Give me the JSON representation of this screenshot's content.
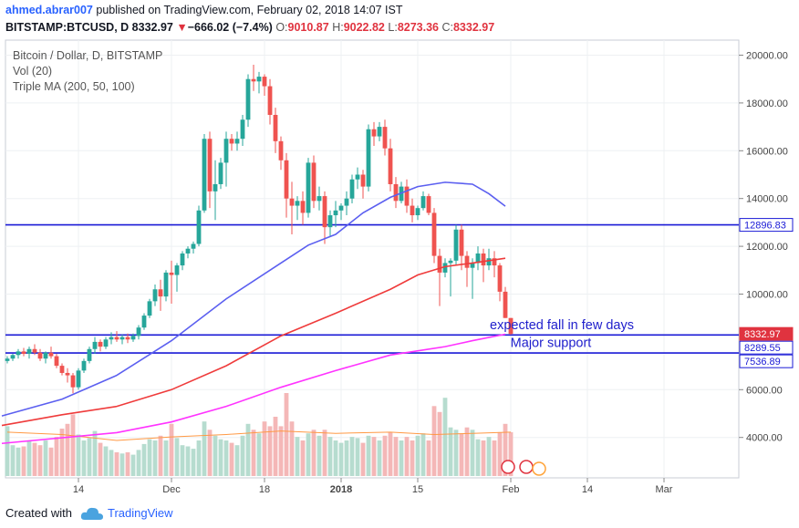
{
  "header": {
    "user": "ahmed.abrar007",
    "published": " published on TradingView.com, February 02, 2018 14:07 IST",
    "symbol": "BITSTAMP:BTCUSD, D",
    "last": "8332.97",
    "change_arrow": "▼",
    "change": "−666.02 (−7.4%)",
    "o_label": "O:",
    "o_value": "9010.87",
    "h_label": "H:",
    "h_value": "9022.82",
    "l_label": "L:",
    "l_value": "8273.36",
    "c_label": "C:",
    "c_value": "8332.97"
  },
  "legend": {
    "main": "Bitcoin / Dollar, D, BITSTAMP",
    "vol": "Vol (20)",
    "ma": "Triple MA (200, 50, 100)"
  },
  "footer": {
    "created_with": "Created with",
    "brand": "TradingView"
  },
  "colors": {
    "up": "#26a69a",
    "down": "#ef5350",
    "ma50": "#5b5ff0",
    "ma100": "#ef3b3b",
    "ma200": "#ff33ff",
    "hline": "#1a1ad6",
    "vol_up": "#b6dccf",
    "vol_down": "#f4b7b7",
    "vol_ma": "#ff9944",
    "accent": "#2962ff"
  },
  "chart_data": {
    "type": "candlestick",
    "y_ticks": [
      "20000.00",
      "18000.00",
      "16000.00",
      "14000.00",
      "12000.00",
      "10000.00",
      "6000.00",
      "4000.00"
    ],
    "y_tick_values": [
      20000,
      18000,
      16000,
      14000,
      12000,
      10000,
      6000,
      4000
    ],
    "x_ticks": [
      "14",
      "Dec",
      "18",
      "2018",
      "15",
      "Feb",
      "14",
      "Mar"
    ],
    "x_tick_days": [
      13,
      30,
      47,
      61,
      75,
      92,
      106,
      120
    ],
    "price_labels": [
      {
        "text": "12896.83",
        "value": 12896.83,
        "style": "outline"
      },
      {
        "text": "8332.97",
        "value": 8332.97,
        "style": "red"
      },
      {
        "text": "8289.55",
        "value": 8289.55,
        "style": "outline"
      },
      {
        "text": "7536.89",
        "value": 7536.89,
        "style": "outline"
      }
    ],
    "horizontal_lines": [
      12896.83,
      8289.55,
      7536.89
    ],
    "annotations": [
      {
        "text": "expected fall in few days",
        "value": 8530,
        "day": 56
      },
      {
        "text": "Major support",
        "value": 7780,
        "day": 54
      }
    ],
    "ma50": [
      [
        -1,
        4900
      ],
      [
        10,
        5600
      ],
      [
        20,
        6600
      ],
      [
        30,
        8050
      ],
      [
        40,
        9800
      ],
      [
        50,
        11300
      ],
      [
        55,
        12050
      ],
      [
        60,
        12500
      ],
      [
        65,
        13400
      ],
      [
        70,
        14050
      ],
      [
        75,
        14500
      ],
      [
        80,
        14680
      ],
      [
        85,
        14600
      ],
      [
        88,
        14200
      ],
      [
        91,
        13680
      ]
    ],
    "ma100": [
      [
        -1,
        4500
      ],
      [
        10,
        4950
      ],
      [
        20,
        5300
      ],
      [
        30,
        6000
      ],
      [
        40,
        7000
      ],
      [
        50,
        8250
      ],
      [
        60,
        9200
      ],
      [
        70,
        10200
      ],
      [
        75,
        10800
      ],
      [
        80,
        11150
      ],
      [
        85,
        11300
      ],
      [
        91,
        11500
      ]
    ],
    "ma200": [
      [
        -1,
        3750
      ],
      [
        20,
        4200
      ],
      [
        30,
        4650
      ],
      [
        40,
        5300
      ],
      [
        50,
        6100
      ],
      [
        60,
        6800
      ],
      [
        70,
        7450
      ],
      [
        80,
        7800
      ],
      [
        85,
        8050
      ],
      [
        91,
        8320
      ]
    ],
    "candles": [
      [
        0,
        7200,
        7400,
        7100,
        7300
      ],
      [
        1,
        7300,
        7500,
        7200,
        7450
      ],
      [
        2,
        7450,
        7700,
        7300,
        7600
      ],
      [
        3,
        7600,
        7750,
        7400,
        7500
      ],
      [
        4,
        7500,
        7800,
        7300,
        7700
      ],
      [
        5,
        7700,
        7900,
        7450,
        7550
      ],
      [
        6,
        7550,
        7700,
        7200,
        7300
      ],
      [
        7,
        7300,
        7600,
        7100,
        7550
      ],
      [
        8,
        7550,
        7800,
        7300,
        7400
      ],
      [
        9,
        7400,
        7500,
        6900,
        7000
      ],
      [
        10,
        7000,
        7100,
        6600,
        6700
      ],
      [
        11,
        6700,
        6900,
        6300,
        6600
      ],
      [
        12,
        6600,
        6700,
        5850,
        6100
      ],
      [
        13,
        6100,
        6900,
        6000,
        6800
      ],
      [
        14,
        6800,
        7300,
        6700,
        7200
      ],
      [
        15,
        7200,
        7800,
        7100,
        7700
      ],
      [
        16,
        7700,
        8200,
        7500,
        8000
      ],
      [
        17,
        8000,
        8100,
        7600,
        7800
      ],
      [
        18,
        7800,
        8200,
        7700,
        8100
      ],
      [
        19,
        8100,
        8400,
        7900,
        8200
      ],
      [
        20,
        8200,
        8450,
        8000,
        8100
      ],
      [
        21,
        8100,
        8300,
        7900,
        8200
      ],
      [
        22,
        8200,
        8350,
        7950,
        8100
      ],
      [
        23,
        8100,
        8350,
        8000,
        8250
      ],
      [
        24,
        8250,
        8700,
        8100,
        8600
      ],
      [
        25,
        8600,
        9200,
        8500,
        9100
      ],
      [
        26,
        9100,
        9800,
        9000,
        9700
      ],
      [
        27,
        9700,
        10400,
        9500,
        10200
      ],
      [
        28,
        10200,
        10600,
        9300,
        9900
      ],
      [
        29,
        9900,
        11000,
        9700,
        10900
      ],
      [
        30,
        10900,
        11400,
        9600,
        10800
      ],
      [
        31,
        10800,
        11300,
        10100,
        11200
      ],
      [
        32,
        11200,
        11800,
        11000,
        11700
      ],
      [
        33,
        11700,
        12000,
        11500,
        11900
      ],
      [
        34,
        11900,
        12200,
        11700,
        12100
      ],
      [
        35,
        12100,
        13700,
        12000,
        13500
      ],
      [
        36,
        13500,
        16700,
        13400,
        16500
      ],
      [
        37,
        16500,
        16800,
        13600,
        14300
      ],
      [
        38,
        14300,
        15600,
        13100,
        14600
      ],
      [
        39,
        14600,
        15700,
        14400,
        15500
      ],
      [
        40,
        15500,
        16800,
        14500,
        16500
      ],
      [
        41,
        16500,
        16700,
        16000,
        16300
      ],
      [
        42,
        16300,
        16800,
        16000,
        16500
      ],
      [
        43,
        16500,
        17500,
        16200,
        17300
      ],
      [
        44,
        17300,
        19200,
        17000,
        19000
      ],
      [
        45,
        19000,
        19600,
        18500,
        18900
      ],
      [
        46,
        18900,
        19300,
        18400,
        19100
      ],
      [
        47,
        19100,
        19200,
        18300,
        18700
      ],
      [
        48,
        18700,
        19000,
        17100,
        17500
      ],
      [
        49,
        17500,
        17800,
        15900,
        16400
      ],
      [
        50,
        16400,
        16600,
        15200,
        15600
      ],
      [
        51,
        15600,
        15900,
        13200,
        14000
      ],
      [
        52,
        14000,
        14700,
        12500,
        13700
      ],
      [
        53,
        13700,
        14100,
        13100,
        13900
      ],
      [
        54,
        13900,
        14300,
        12900,
        13400
      ],
      [
        55,
        13400,
        15700,
        13200,
        15500
      ],
      [
        56,
        15500,
        15800,
        13600,
        13900
      ],
      [
        57,
        13900,
        14500,
        13500,
        14100
      ],
      [
        58,
        14100,
        14300,
        12100,
        12800
      ],
      [
        59,
        12800,
        13500,
        12400,
        13300
      ],
      [
        60,
        13300,
        13900,
        12800,
        13500
      ],
      [
        61,
        13500,
        13800,
        13100,
        13700
      ],
      [
        62,
        13700,
        14300,
        13300,
        14000
      ],
      [
        63,
        14000,
        15000,
        13800,
        14800
      ],
      [
        64,
        14800,
        15300,
        14400,
        15000
      ],
      [
        65,
        15000,
        15200,
        14000,
        14500
      ],
      [
        66,
        14500,
        17100,
        14300,
        16900
      ],
      [
        67,
        16900,
        17200,
        16200,
        16600
      ],
      [
        68,
        16600,
        17200,
        16400,
        17000
      ],
      [
        69,
        17000,
        17300,
        15800,
        16100
      ],
      [
        70,
        16100,
        16500,
        14300,
        14600
      ],
      [
        71,
        14600,
        14900,
        13600,
        13900
      ],
      [
        72,
        13900,
        14700,
        13800,
        14500
      ],
      [
        73,
        14500,
        14800,
        13400,
        13700
      ],
      [
        74,
        13700,
        14000,
        13000,
        13300
      ],
      [
        75,
        13300,
        13700,
        13100,
        13600
      ],
      [
        76,
        13600,
        14300,
        13500,
        14100
      ],
      [
        77,
        14100,
        14200,
        13300,
        13400
      ],
      [
        78,
        13400,
        13600,
        11300,
        11600
      ],
      [
        79,
        11600,
        11900,
        9500,
        10900
      ],
      [
        80,
        10900,
        11500,
        10700,
        11300
      ],
      [
        81,
        11300,
        11500,
        9900,
        11400
      ],
      [
        82,
        11400,
        12900,
        11200,
        12700
      ],
      [
        83,
        12700,
        12900,
        11000,
        11600
      ],
      [
        84,
        11600,
        11800,
        10300,
        11100
      ],
      [
        85,
        11100,
        11500,
        9800,
        11300
      ],
      [
        86,
        11300,
        12000,
        11000,
        11700
      ],
      [
        87,
        11700,
        11900,
        10500,
        11200
      ],
      [
        88,
        11200,
        11900,
        11000,
        11500
      ],
      [
        89,
        11500,
        11800,
        10700,
        11200
      ],
      [
        90,
        11200,
        11300,
        9700,
        10100
      ],
      [
        91,
        10100,
        10300,
        9000,
        9000
      ],
      [
        92,
        9000,
        9000,
        8300,
        8333
      ]
    ],
    "volume_bars": [
      [
        0,
        4.2
      ],
      [
        1,
        2.6
      ],
      [
        2,
        2.4
      ],
      [
        3,
        2.5
      ],
      [
        4,
        3.0
      ],
      [
        5,
        2.8
      ],
      [
        6,
        2.6
      ],
      [
        7,
        3.0
      ],
      [
        8,
        2.4
      ],
      [
        9,
        3.3
      ],
      [
        10,
        4.0
      ],
      [
        11,
        4.4
      ],
      [
        12,
        5.2
      ],
      [
        13,
        3.5
      ],
      [
        14,
        3.0
      ],
      [
        15,
        3.2
      ],
      [
        16,
        3.8
      ],
      [
        17,
        2.8
      ],
      [
        18,
        2.5
      ],
      [
        19,
        2.2
      ],
      [
        20,
        2.0
      ],
      [
        21,
        1.9
      ],
      [
        22,
        2.0
      ],
      [
        23,
        1.8
      ],
      [
        24,
        2.2
      ],
      [
        25,
        2.7
      ],
      [
        26,
        3.1
      ],
      [
        27,
        3.0
      ],
      [
        28,
        3.4
      ],
      [
        29,
        3.0
      ],
      [
        30,
        4.4
      ],
      [
        31,
        3.2
      ],
      [
        32,
        2.6
      ],
      [
        33,
        2.5
      ],
      [
        34,
        2.3
      ],
      [
        35,
        3.0
      ],
      [
        36,
        4.6
      ],
      [
        37,
        3.9
      ],
      [
        38,
        3.4
      ],
      [
        39,
        3.1
      ],
      [
        40,
        3.0
      ],
      [
        41,
        2.8
      ],
      [
        42,
        2.6
      ],
      [
        43,
        3.4
      ],
      [
        44,
        4.4
      ],
      [
        45,
        3.9
      ],
      [
        46,
        3.6
      ],
      [
        47,
        4.6
      ],
      [
        48,
        4.2
      ],
      [
        49,
        5.0
      ],
      [
        50,
        4.2
      ],
      [
        51,
        7.0
      ],
      [
        52,
        4.6
      ],
      [
        53,
        3.3
      ],
      [
        54,
        3.0
      ],
      [
        55,
        3.6
      ],
      [
        56,
        3.9
      ],
      [
        57,
        3.4
      ],
      [
        58,
        3.9
      ],
      [
        59,
        3.3
      ],
      [
        60,
        3.0
      ],
      [
        61,
        2.8
      ],
      [
        62,
        3.0
      ],
      [
        63,
        3.3
      ],
      [
        64,
        3.2
      ],
      [
        65,
        2.8
      ],
      [
        66,
        3.4
      ],
      [
        67,
        3.3
      ],
      [
        68,
        3.0
      ],
      [
        69,
        3.4
      ],
      [
        70,
        3.7
      ],
      [
        71,
        3.3
      ],
      [
        72,
        3.0
      ],
      [
        73,
        3.3
      ],
      [
        74,
        3.0
      ],
      [
        75,
        3.4
      ],
      [
        76,
        3.6
      ],
      [
        77,
        3.0
      ],
      [
        78,
        5.9
      ],
      [
        79,
        5.4
      ],
      [
        80,
        6.6
      ],
      [
        81,
        4.1
      ],
      [
        82,
        3.9
      ],
      [
        83,
        3.6
      ],
      [
        84,
        4.1
      ],
      [
        85,
        3.9
      ],
      [
        86,
        3.1
      ],
      [
        87,
        3.0
      ],
      [
        88,
        3.3
      ],
      [
        89,
        3.0
      ],
      [
        90,
        3.7
      ],
      [
        91,
        4.4
      ],
      [
        92,
        3.7
      ]
    ],
    "vol_ma": [
      [
        0,
        3.7
      ],
      [
        10,
        3.5
      ],
      [
        20,
        3.0
      ],
      [
        30,
        3.3
      ],
      [
        40,
        3.5
      ],
      [
        50,
        3.8
      ],
      [
        60,
        3.6
      ],
      [
        70,
        3.7
      ],
      [
        78,
        3.5
      ],
      [
        85,
        3.6
      ],
      [
        92,
        3.7
      ]
    ],
    "vol_unit_range": [
      0,
      7.5
    ]
  }
}
